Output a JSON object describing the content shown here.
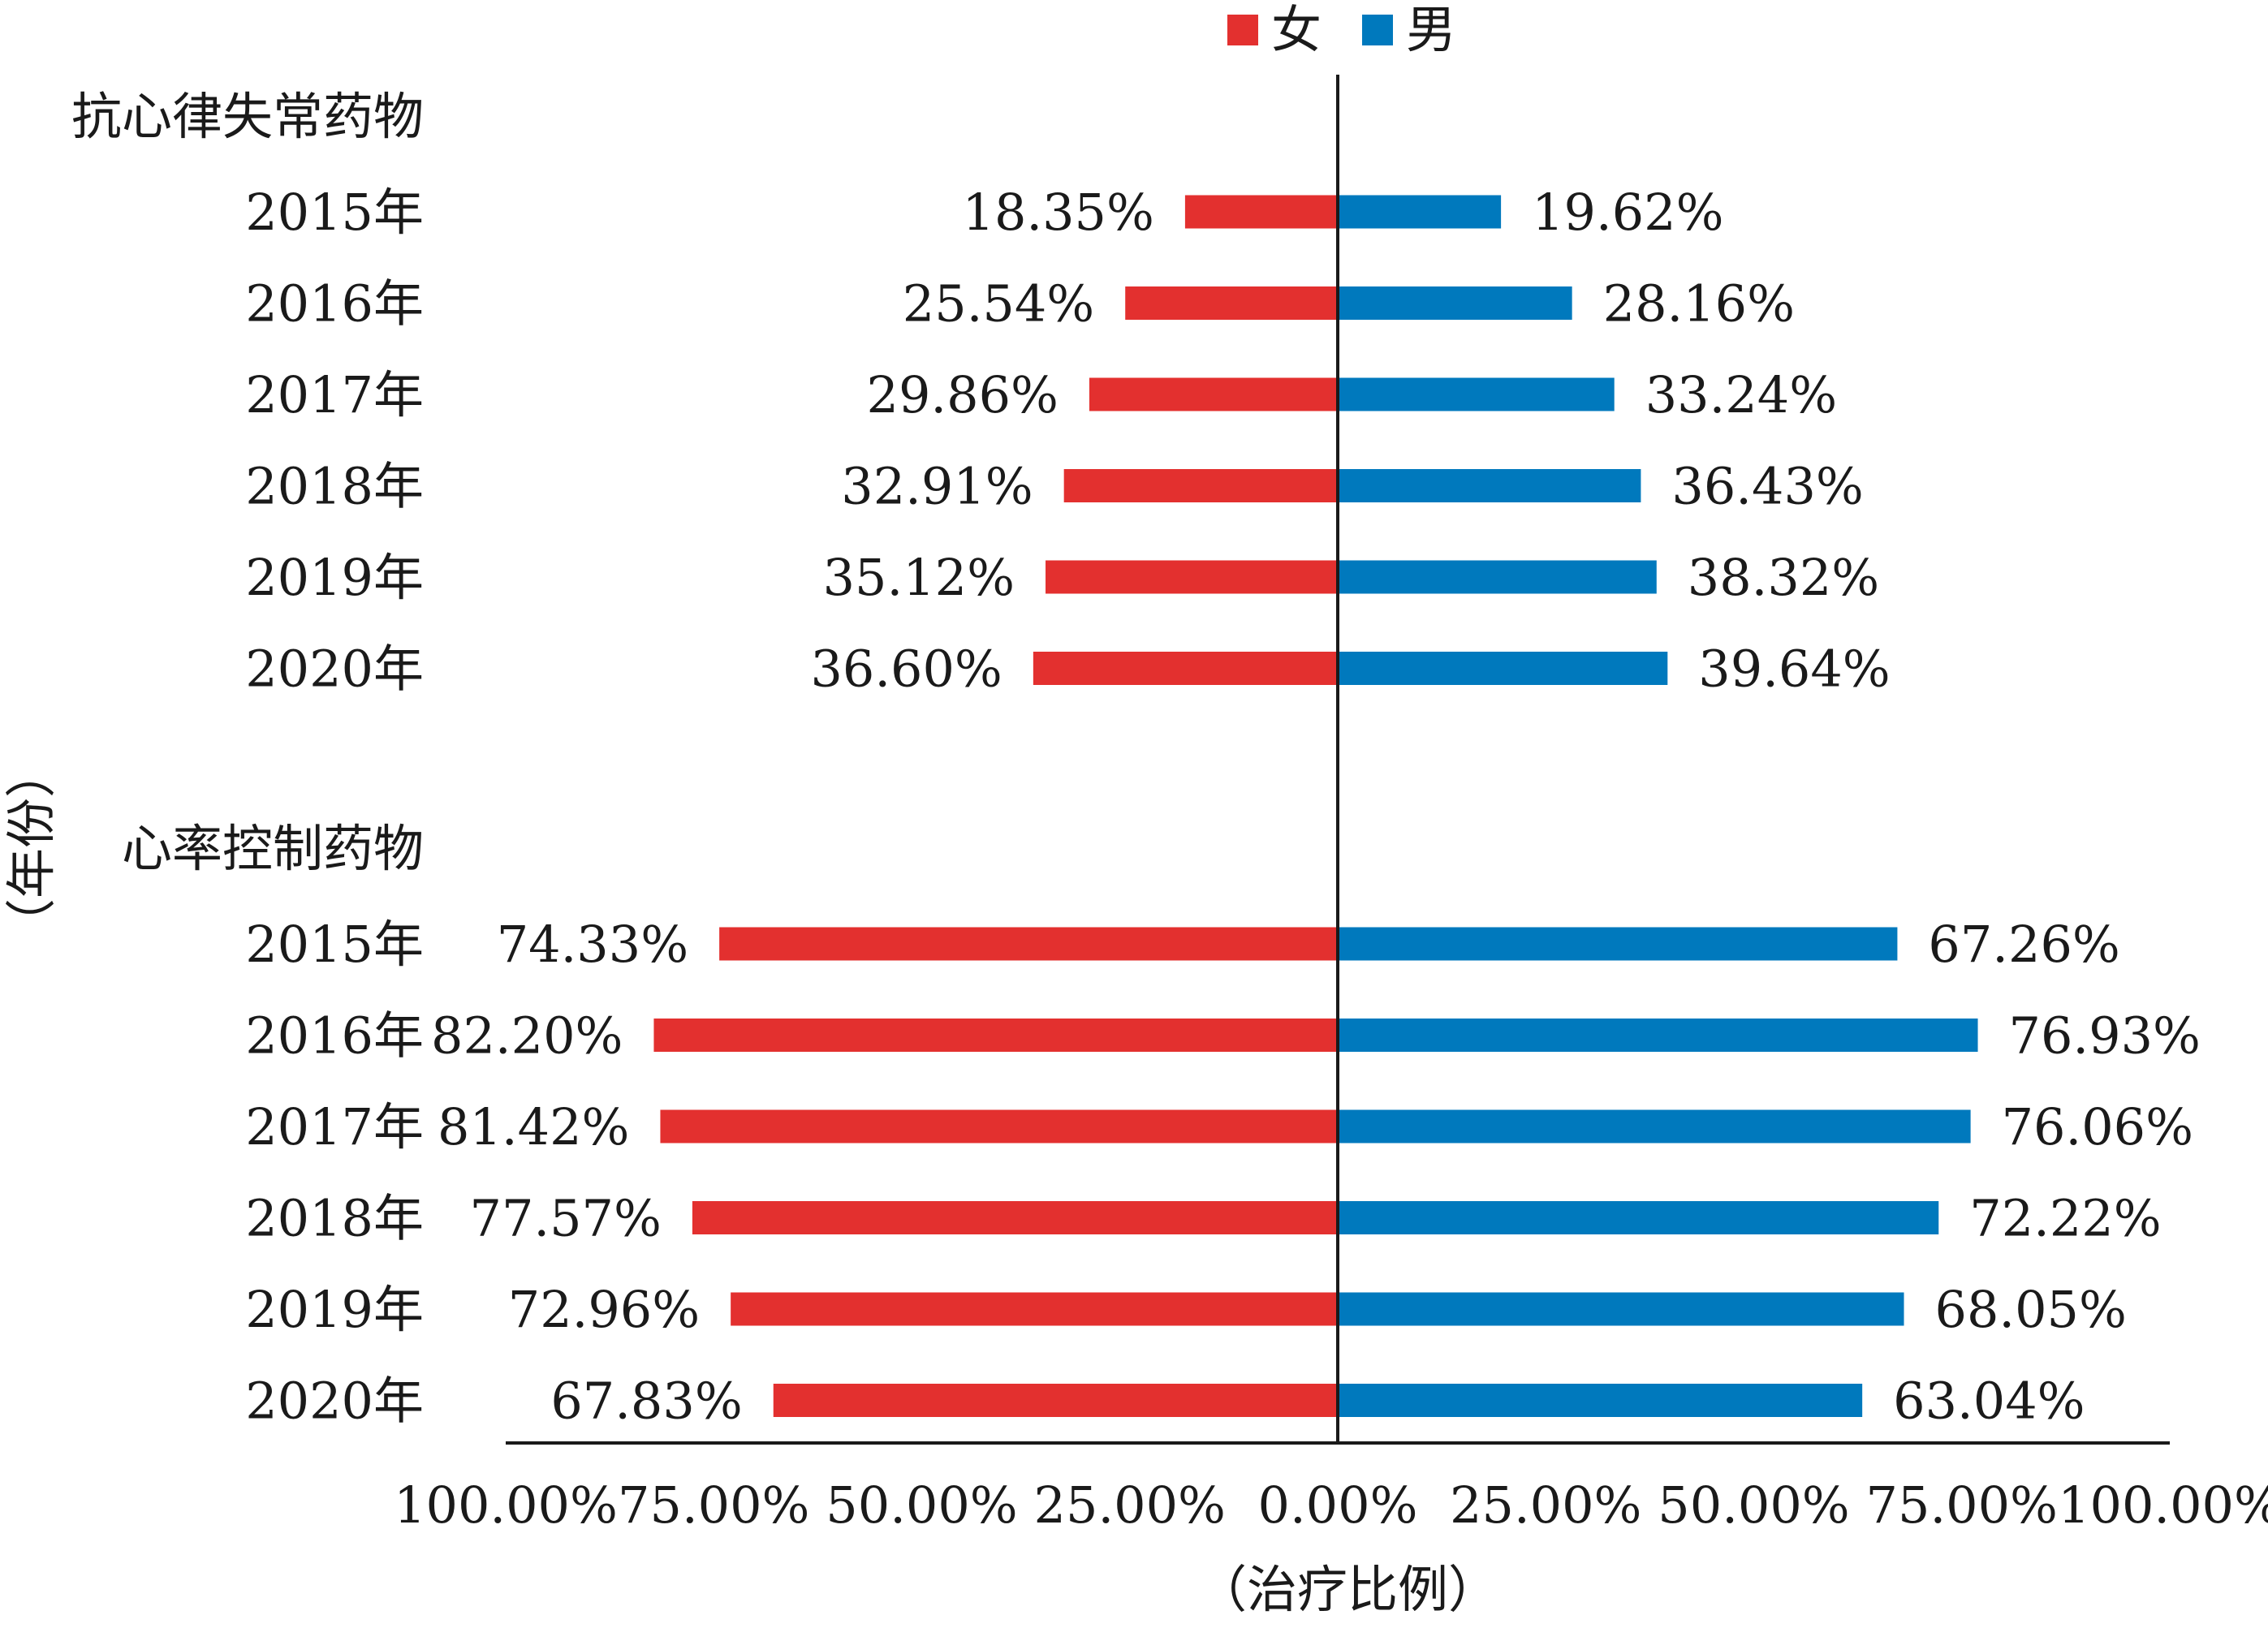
{
  "chart_data": {
    "type": "bar",
    "orientation": "horizontal-diverging",
    "legend": [
      {
        "name": "女",
        "color": "#e3302f"
      },
      {
        "name": "男",
        "color": "#0079bd"
      }
    ],
    "legend_position": "top-center",
    "xlabel": "（治疗比例）",
    "ylabel": "（年份）",
    "xticks": [
      "100.00%",
      "75.00%",
      "50.00%",
      "25.00%",
      "0.00%",
      "25.00%",
      "50.00%",
      "75.00%",
      "100.00%"
    ],
    "xlim": [
      -100,
      100
    ],
    "groups": [
      {
        "name": "抗心律失常药物",
        "categories": [
          "2015年",
          "2016年",
          "2017年",
          "2018年",
          "2019年",
          "2020年"
        ],
        "female": [
          18.35,
          25.54,
          29.86,
          32.91,
          35.12,
          36.6
        ],
        "male": [
          19.62,
          28.16,
          33.24,
          36.43,
          38.32,
          39.64
        ],
        "female_labels": [
          "18.35%",
          "25.54%",
          "29.86%",
          "32.91%",
          "35.12%",
          "36.60%"
        ],
        "male_labels": [
          "19.62%",
          "28.16%",
          "33.24%",
          "36.43%",
          "38.32%",
          "39.64%"
        ]
      },
      {
        "name": "心率控制药物",
        "categories": [
          "2015年",
          "2016年",
          "2017年",
          "2018年",
          "2019年",
          "2020年"
        ],
        "female": [
          74.33,
          82.2,
          81.42,
          77.57,
          72.96,
          67.83
        ],
        "male": [
          67.26,
          76.93,
          76.06,
          72.22,
          68.05,
          63.04
        ],
        "female_labels": [
          "74.33%",
          "82.20%",
          "81.42%",
          "77.57%",
          "72.96%",
          "67.83%"
        ],
        "male_labels": [
          "67.26%",
          "76.93%",
          "76.06%",
          "72.22%",
          "68.05%",
          "63.04%"
        ]
      }
    ],
    "grid": false
  }
}
